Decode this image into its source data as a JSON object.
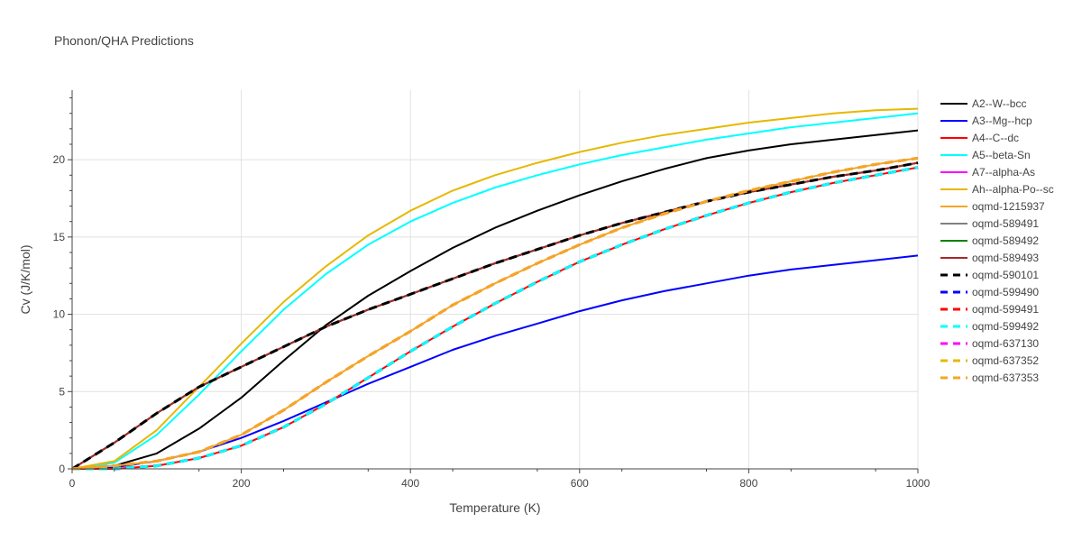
{
  "chart_data": {
    "type": "line",
    "title": "Phonon/QHA Predictions",
    "xlabel": "Temperature (K)",
    "ylabel": "Cv (J/K/mol)",
    "xlim": [
      0,
      1000
    ],
    "ylim": [
      0,
      24.5
    ],
    "xticks": [
      0,
      200,
      400,
      600,
      800,
      1000
    ],
    "yticks": [
      0,
      5,
      10,
      15,
      20
    ],
    "legend_position": "right",
    "series": [
      {
        "name": "A2--W--bcc",
        "color": "#000000",
        "dash": "solid",
        "x": [
          0,
          50,
          100,
          150,
          200,
          250,
          300,
          350,
          400,
          450,
          500,
          550,
          600,
          650,
          700,
          750,
          800,
          850,
          900,
          950,
          1000
        ],
        "y": [
          0,
          0.2,
          1.0,
          2.6,
          4.6,
          7.0,
          9.3,
          11.2,
          12.8,
          14.3,
          15.6,
          16.7,
          17.7,
          18.6,
          19.4,
          20.1,
          20.6,
          21.0,
          21.3,
          21.6,
          21.9
        ]
      },
      {
        "name": "A3--Mg--hcp",
        "color": "#0000ff",
        "dash": "solid",
        "x": [
          0,
          50,
          100,
          150,
          200,
          250,
          300,
          350,
          400,
          450,
          500,
          550,
          600,
          650,
          700,
          750,
          800,
          850,
          900,
          950,
          1000
        ],
        "y": [
          0,
          0.1,
          0.5,
          1.1,
          2.0,
          3.1,
          4.3,
          5.5,
          6.6,
          7.7,
          8.6,
          9.4,
          10.2,
          10.9,
          11.5,
          12.0,
          12.5,
          12.9,
          13.2,
          13.5,
          13.8
        ]
      },
      {
        "name": "A4--C--dc",
        "color": "#ff0000",
        "dash": "solid",
        "x": [
          0,
          50,
          100,
          150,
          200,
          250,
          300,
          350,
          400,
          450,
          500,
          550,
          600,
          650,
          700,
          750,
          800,
          850,
          900,
          950,
          1000
        ],
        "y": [
          0,
          0.0,
          0.2,
          0.7,
          1.5,
          2.7,
          4.2,
          5.9,
          7.6,
          9.2,
          10.7,
          12.1,
          13.4,
          14.5,
          15.5,
          16.4,
          17.2,
          17.9,
          18.5,
          19.0,
          19.5
        ]
      },
      {
        "name": "A5--beta-Sn",
        "color": "#00ffff",
        "dash": "solid",
        "x": [
          0,
          50,
          100,
          150,
          200,
          250,
          300,
          350,
          400,
          450,
          500,
          550,
          600,
          650,
          700,
          750,
          800,
          850,
          900,
          950,
          1000
        ],
        "y": [
          0,
          0.4,
          2.2,
          4.8,
          7.6,
          10.3,
          12.6,
          14.5,
          16.0,
          17.2,
          18.2,
          19.0,
          19.7,
          20.3,
          20.8,
          21.3,
          21.7,
          22.1,
          22.4,
          22.7,
          23.0
        ]
      },
      {
        "name": "A7--alpha-As",
        "color": "#ff00ff",
        "dash": "solid",
        "x": [
          0,
          50,
          100,
          150,
          200,
          250,
          300,
          350,
          400,
          450,
          500,
          550,
          600,
          650,
          700,
          750,
          800,
          850,
          900,
          950,
          1000
        ],
        "y": [
          0,
          1.7,
          3.6,
          5.3,
          6.6,
          7.9,
          9.2,
          10.3,
          11.3,
          12.3,
          13.3,
          14.2,
          15.1,
          15.9,
          16.6,
          17.3,
          17.9,
          18.4,
          18.9,
          19.3,
          19.8
        ]
      },
      {
        "name": "Ah--alpha-Po--sc",
        "color": "#e6b800",
        "dash": "solid",
        "x": [
          0,
          50,
          100,
          150,
          200,
          250,
          300,
          350,
          400,
          450,
          500,
          550,
          600,
          650,
          700,
          750,
          800,
          850,
          900,
          950,
          1000
        ],
        "y": [
          0,
          0.5,
          2.5,
          5.3,
          8.1,
          10.8,
          13.1,
          15.1,
          16.7,
          18.0,
          19.0,
          19.8,
          20.5,
          21.1,
          21.6,
          22.0,
          22.4,
          22.7,
          23.0,
          23.2,
          23.3
        ]
      },
      {
        "name": "oqmd-1215937",
        "color": "#f4a623",
        "dash": "solid",
        "x": [
          0,
          50,
          100,
          150,
          200,
          250,
          300,
          350,
          400,
          450,
          500,
          550,
          600,
          650,
          700,
          750,
          800,
          850,
          900,
          950,
          1000
        ],
        "y": [
          0,
          0.2,
          0.5,
          1.1,
          2.2,
          3.8,
          5.6,
          7.3,
          8.9,
          10.6,
          12.0,
          13.3,
          14.5,
          15.6,
          16.5,
          17.3,
          18.0,
          18.6,
          19.2,
          19.7,
          20.1
        ]
      },
      {
        "name": "oqmd-589491",
        "color": "#808080",
        "dash": "solid",
        "x": [
          0,
          50,
          100,
          150,
          200,
          250,
          300,
          350,
          400,
          450,
          500,
          550,
          600,
          650,
          700,
          750,
          800,
          850,
          900,
          950,
          1000
        ],
        "y": [
          0,
          1.7,
          3.6,
          5.3,
          6.6,
          7.9,
          9.2,
          10.3,
          11.3,
          12.3,
          13.3,
          14.2,
          15.1,
          15.9,
          16.6,
          17.3,
          17.9,
          18.4,
          18.9,
          19.3,
          19.8
        ]
      },
      {
        "name": "oqmd-589492",
        "color": "#008000",
        "dash": "solid",
        "x": [
          0,
          50,
          100,
          150,
          200,
          250,
          300,
          350,
          400,
          450,
          500,
          550,
          600,
          650,
          700,
          750,
          800,
          850,
          900,
          950,
          1000
        ],
        "y": [
          0,
          1.7,
          3.6,
          5.3,
          6.6,
          7.9,
          9.2,
          10.3,
          11.3,
          12.3,
          13.3,
          14.2,
          15.1,
          15.9,
          16.6,
          17.3,
          17.9,
          18.4,
          18.9,
          19.3,
          19.8
        ]
      },
      {
        "name": "oqmd-589493",
        "color": "#a52a2a",
        "dash": "solid",
        "x": [
          0,
          50,
          100,
          150,
          200,
          250,
          300,
          350,
          400,
          450,
          500,
          550,
          600,
          650,
          700,
          750,
          800,
          850,
          900,
          950,
          1000
        ],
        "y": [
          0,
          1.7,
          3.6,
          5.3,
          6.6,
          7.9,
          9.2,
          10.3,
          11.3,
          12.3,
          13.3,
          14.2,
          15.1,
          15.9,
          16.6,
          17.3,
          17.9,
          18.4,
          18.9,
          19.3,
          19.8
        ]
      },
      {
        "name": "oqmd-590101",
        "color": "#000000",
        "dash": "dash",
        "x": [
          0,
          50,
          100,
          150,
          200,
          250,
          300,
          350,
          400,
          450,
          500,
          550,
          600,
          650,
          700,
          750,
          800,
          850,
          900,
          950,
          1000
        ],
        "y": [
          0,
          1.7,
          3.6,
          5.3,
          6.6,
          7.9,
          9.2,
          10.3,
          11.3,
          12.3,
          13.3,
          14.2,
          15.1,
          15.9,
          16.6,
          17.3,
          17.9,
          18.4,
          18.9,
          19.3,
          19.8
        ]
      },
      {
        "name": "oqmd-599490",
        "color": "#0000ff",
        "dash": "dash",
        "x": [
          0,
          50,
          100,
          150,
          200,
          250,
          300,
          350,
          400,
          450,
          500,
          550,
          600,
          650,
          700,
          750,
          800,
          850,
          900,
          950,
          1000
        ],
        "y": [
          0,
          0.0,
          0.2,
          0.7,
          1.5,
          2.7,
          4.2,
          5.9,
          7.6,
          9.2,
          10.7,
          12.1,
          13.4,
          14.5,
          15.5,
          16.4,
          17.2,
          17.9,
          18.5,
          19.0,
          19.5
        ]
      },
      {
        "name": "oqmd-599491",
        "color": "#ff0000",
        "dash": "dash",
        "x": [
          0,
          50,
          100,
          150,
          200,
          250,
          300,
          350,
          400,
          450,
          500,
          550,
          600,
          650,
          700,
          750,
          800,
          850,
          900,
          950,
          1000
        ],
        "y": [
          0,
          0.0,
          0.2,
          0.7,
          1.5,
          2.7,
          4.2,
          5.9,
          7.6,
          9.2,
          10.7,
          12.1,
          13.4,
          14.5,
          15.5,
          16.4,
          17.2,
          17.9,
          18.5,
          19.0,
          19.5
        ]
      },
      {
        "name": "oqmd-599492",
        "color": "#00ffff",
        "dash": "dash",
        "x": [
          0,
          50,
          100,
          150,
          200,
          250,
          300,
          350,
          400,
          450,
          500,
          550,
          600,
          650,
          700,
          750,
          800,
          850,
          900,
          950,
          1000
        ],
        "y": [
          0,
          0.0,
          0.2,
          0.7,
          1.5,
          2.7,
          4.2,
          5.9,
          7.6,
          9.2,
          10.7,
          12.1,
          13.4,
          14.5,
          15.5,
          16.4,
          17.2,
          17.9,
          18.5,
          19.0,
          19.5
        ]
      },
      {
        "name": "oqmd-637130",
        "color": "#ff00ff",
        "dash": "dash",
        "x": [
          0,
          50,
          100,
          150,
          200,
          250,
          300,
          350,
          400,
          450,
          500,
          550,
          600,
          650,
          700,
          750,
          800,
          850,
          900,
          950,
          1000
        ],
        "y": [
          0,
          0.2,
          0.5,
          1.1,
          2.2,
          3.8,
          5.6,
          7.3,
          8.9,
          10.6,
          12.0,
          13.3,
          14.5,
          15.6,
          16.5,
          17.3,
          18.0,
          18.6,
          19.2,
          19.7,
          20.1
        ]
      },
      {
        "name": "oqmd-637352",
        "color": "#e6b800",
        "dash": "dash",
        "x": [
          0,
          50,
          100,
          150,
          200,
          250,
          300,
          350,
          400,
          450,
          500,
          550,
          600,
          650,
          700,
          750,
          800,
          850,
          900,
          950,
          1000
        ],
        "y": [
          0,
          0.2,
          0.5,
          1.1,
          2.2,
          3.8,
          5.6,
          7.3,
          8.9,
          10.6,
          12.0,
          13.3,
          14.5,
          15.6,
          16.5,
          17.3,
          18.0,
          18.6,
          19.2,
          19.7,
          20.1
        ]
      },
      {
        "name": "oqmd-637353",
        "color": "#f4a623",
        "dash": "dash",
        "x": [
          0,
          50,
          100,
          150,
          200,
          250,
          300,
          350,
          400,
          450,
          500,
          550,
          600,
          650,
          700,
          750,
          800,
          850,
          900,
          950,
          1000
        ],
        "y": [
          0,
          0.2,
          0.5,
          1.1,
          2.2,
          3.8,
          5.6,
          7.3,
          8.9,
          10.6,
          12.0,
          13.3,
          14.5,
          15.6,
          16.5,
          17.3,
          18.0,
          18.6,
          19.2,
          19.7,
          20.1
        ]
      }
    ]
  }
}
